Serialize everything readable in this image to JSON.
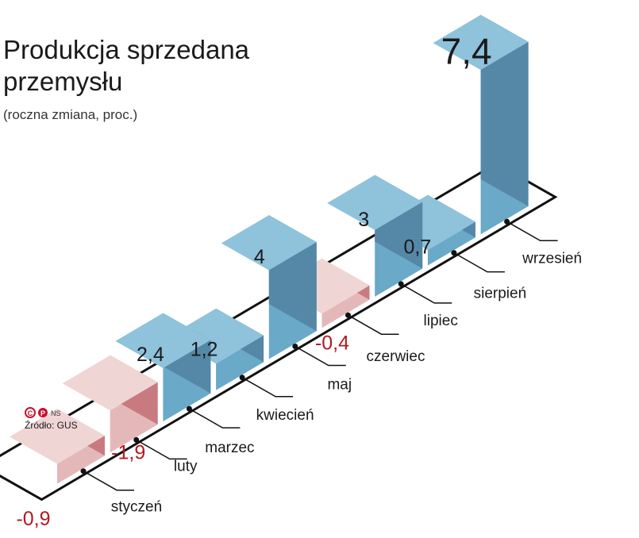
{
  "chart_data": {
    "type": "bar",
    "title": "Produkcja sprzedana przemysłu",
    "title_lines": [
      "Produkcja sprzedana",
      "przemysłu"
    ],
    "subtitle": "(roczna zmiana, proc.)",
    "categories": [
      "styczeń",
      "luty",
      "marzec",
      "kwiecień",
      "maj",
      "czerwiec",
      "lipiec",
      "sierpień",
      "wrzesień"
    ],
    "values": [
      -0.9,
      -1.9,
      2.4,
      1.2,
      4,
      -0.4,
      3,
      0.7,
      7.4
    ],
    "value_labels": [
      "-0,9",
      "-1,9",
      "2,4",
      "1,2",
      "4",
      "-0,4",
      "3",
      "0,7",
      "7,4"
    ],
    "ylim": [
      -1.9,
      7.4
    ],
    "xlabel": "",
    "ylabel": "",
    "grid": false,
    "legend": "none"
  },
  "source": "Źródło: GUS",
  "credit": "NS",
  "colors": {
    "positive_front": "#6aa9c8",
    "positive_side": "#5588a6",
    "positive_top": "#8fc2db",
    "negative_front": "#e4b8b9",
    "negative_side": "#c97a80",
    "negative_top": "#f0d5d5",
    "negative_label": "#b5191f",
    "text": "#1a1a1a"
  }
}
